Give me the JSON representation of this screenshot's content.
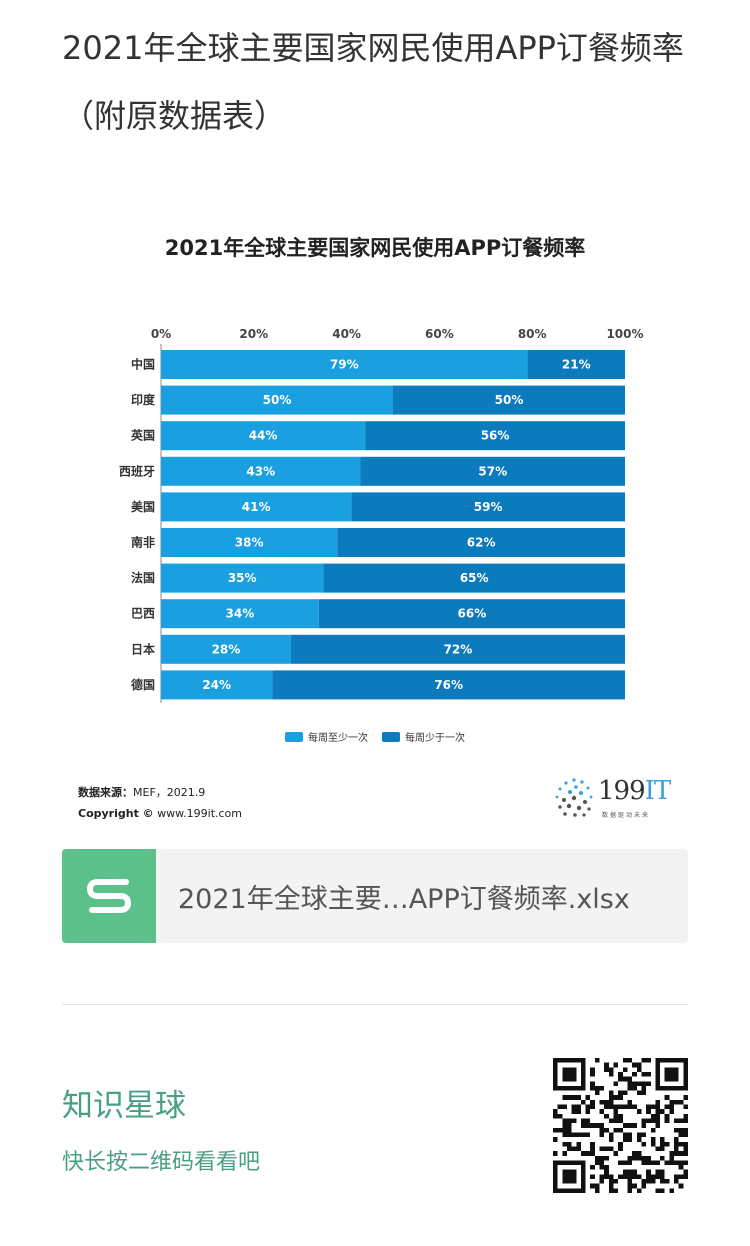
{
  "post": {
    "title": "2021年全球主要国家网民使用APP订餐频率（附原数据表）"
  },
  "chart_data": {
    "type": "bar",
    "stacked": true,
    "orientation": "horizontal",
    "title": "2021年全球主要国家网民使用APP订餐频率",
    "categories": [
      "中国",
      "印度",
      "英国",
      "西班牙",
      "美国",
      "南非",
      "法国",
      "巴西",
      "日本",
      "德国"
    ],
    "series": [
      {
        "name": "每周至少一次",
        "values": [
          79,
          50,
          44,
          43,
          41,
          38,
          35,
          34,
          28,
          24
        ],
        "color": "#1a9fe0"
      },
      {
        "name": "每周少于一次",
        "values": [
          21,
          50,
          56,
          57,
          59,
          62,
          65,
          66,
          72,
          76
        ],
        "color": "#0b7bbd"
      }
    ],
    "xlim": [
      0,
      100
    ],
    "x_ticks": [
      "0%",
      "20%",
      "40%",
      "60%",
      "80%",
      "100%"
    ],
    "value_suffix": "%",
    "legend_position": "bottom",
    "grid": false
  },
  "chart_footer": {
    "source_label": "数据来源：",
    "source_value": "MEF，2021.9",
    "copyright_label": "Copyright ©",
    "copyright_value": "www.199it.com",
    "brand_number": "199",
    "brand_letters": "IT",
    "brand_slogan": "数据驱动未来"
  },
  "attachment": {
    "file_name": "2021年全球主要…APP订餐频率.xlsx",
    "icon": "spreadsheet-s-icon",
    "icon_color": "#5cc08a"
  },
  "footer": {
    "title": "知识星球",
    "subtitle": "快长按二维码看看吧",
    "accent_color": "#49a081",
    "qr_icon": "qr-code-icon"
  }
}
